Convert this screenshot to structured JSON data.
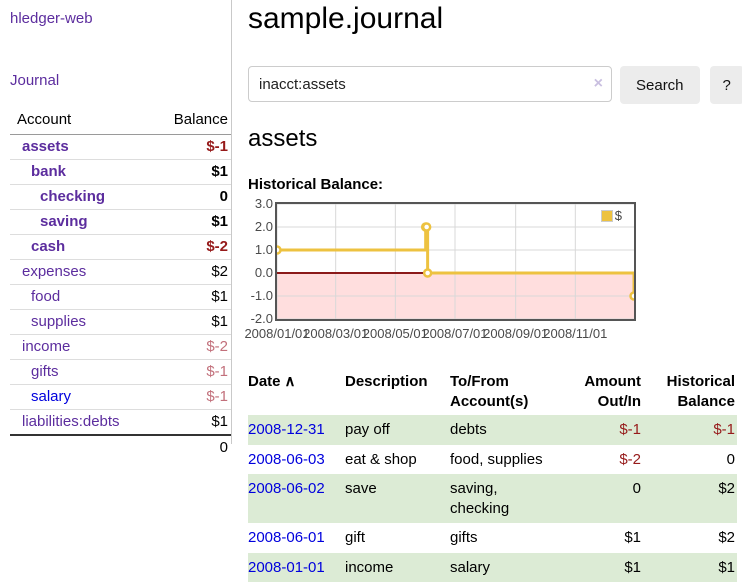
{
  "app": {
    "brand": "hledger-web",
    "nav_journal": "Journal"
  },
  "sidebar": {
    "header": {
      "account": "Account",
      "balance": "Balance"
    },
    "accounts": [
      {
        "name": "assets",
        "depth": 1,
        "matched": true,
        "unvisited": false,
        "balance": "$-1",
        "negative": true
      },
      {
        "name": "bank",
        "depth": 2,
        "matched": true,
        "unvisited": false,
        "balance": "$1",
        "negative": false
      },
      {
        "name": "checking",
        "depth": 3,
        "matched": true,
        "unvisited": false,
        "balance": "0",
        "negative": false
      },
      {
        "name": "saving",
        "depth": 3,
        "matched": true,
        "unvisited": false,
        "balance": "$1",
        "negative": false
      },
      {
        "name": "cash",
        "depth": 2,
        "matched": true,
        "unvisited": false,
        "balance": "$-2",
        "negative": true
      },
      {
        "name": "expenses",
        "depth": 1,
        "matched": false,
        "unvisited": false,
        "balance": "$2",
        "negative": false
      },
      {
        "name": "food",
        "depth": 2,
        "matched": false,
        "unvisited": false,
        "balance": "$1",
        "negative": false
      },
      {
        "name": "supplies",
        "depth": 2,
        "matched": false,
        "unvisited": false,
        "balance": "$1",
        "negative": false
      },
      {
        "name": "income",
        "depth": 1,
        "matched": false,
        "unvisited": false,
        "balance": "$-2",
        "negative": true
      },
      {
        "name": "gifts",
        "depth": 2,
        "matched": false,
        "unvisited": false,
        "balance": "$-1",
        "negative": true
      },
      {
        "name": "salary",
        "depth": 2,
        "matched": false,
        "unvisited": true,
        "balance": "$-1",
        "negative": true
      },
      {
        "name": "liabilities:debts",
        "depth": 1,
        "matched": false,
        "unvisited": false,
        "balance": "$1",
        "negative": false
      }
    ],
    "total": "0"
  },
  "main": {
    "title": "sample.journal",
    "search": {
      "value": "inacct:assets",
      "clear_icon": "×",
      "button": "Search",
      "help": "?"
    },
    "account_heading": "assets"
  },
  "chart_data": {
    "type": "line",
    "step": true,
    "title": "Historical Balance:",
    "xlim": [
      "2008-01-01",
      "2008-12-31"
    ],
    "ylim": [
      -2.0,
      3.0
    ],
    "yticks": [
      "3.0",
      "2.0",
      "1.0",
      "0.0",
      "-1.0",
      "-2.0"
    ],
    "xticks": [
      "2008/01/01",
      "2008/03/01",
      "2008/05/01",
      "2008/07/01",
      "2008/09/01",
      "2008/11/01"
    ],
    "series": [
      {
        "name": "$",
        "color": "#edc240",
        "points": [
          [
            "2008-01-01",
            1
          ],
          [
            "2008-06-01",
            2
          ],
          [
            "2008-06-02",
            2
          ],
          [
            "2008-06-03",
            0
          ],
          [
            "2008-12-31",
            -1
          ]
        ]
      }
    ],
    "legend_position": "top-right",
    "grid": true,
    "negative_fill": "#ffdede",
    "zero_line_color": "#8b1a1a"
  },
  "register": {
    "headers": [
      "Date",
      "Description",
      "To/From Account(s)",
      "Amount Out/In",
      "Historical Balance"
    ],
    "sort_arrow": "∧",
    "rows": [
      {
        "date": "2008-12-31",
        "description": "pay off",
        "accounts": "debts",
        "amount": "$-1",
        "balance": "$-1"
      },
      {
        "date": "2008-06-03",
        "description": "eat & shop",
        "accounts": "food, supplies",
        "amount": "$-2",
        "balance": "0"
      },
      {
        "date": "2008-06-02",
        "description": "save",
        "accounts": "saving, checking",
        "amount": "0",
        "balance": "$2"
      },
      {
        "date": "2008-06-01",
        "description": "gift",
        "accounts": "gifts",
        "amount": "$1",
        "balance": "$2"
      },
      {
        "date": "2008-01-01",
        "description": "income",
        "accounts": "salary",
        "amount": "$1",
        "balance": "$1"
      }
    ]
  }
}
